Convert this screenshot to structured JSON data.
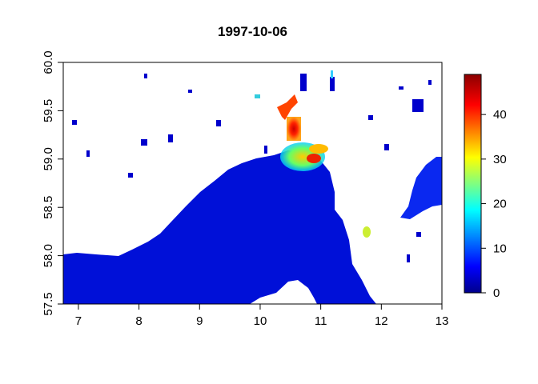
{
  "chart_data": {
    "type": "heatmap",
    "title": "1997-10-06",
    "xlabel": "",
    "ylabel": "",
    "xlim": [
      6.75,
      13.0
    ],
    "ylim": [
      57.5,
      60.0
    ],
    "x_ticks": [
      "7",
      "8",
      "9",
      "10",
      "11",
      "12",
      "13"
    ],
    "y_ticks": [
      "57.5",
      "58.0",
      "58.5",
      "59.0",
      "59.5",
      "60.0"
    ],
    "colorbar": {
      "range": [
        0,
        49
      ],
      "ticks": [
        "0",
        "10",
        "20",
        "30",
        "40"
      ],
      "colors": [
        "#00008B",
        "#0000FF",
        "#00FFFF",
        "#FFFF00",
        "#FF0000",
        "#8B0000"
      ]
    },
    "hotspots": [
      {
        "lon": 10.6,
        "lat": 59.3,
        "value": 47
      },
      {
        "lon": 10.55,
        "lat": 59.5,
        "value": 32
      },
      {
        "lon": 10.75,
        "lat": 59.1,
        "value": 36
      },
      {
        "lon": 10.9,
        "lat": 59.0,
        "value": 42
      },
      {
        "lon": 10.85,
        "lat": 58.95,
        "value": 18
      },
      {
        "lon": 11.8,
        "lat": 58.2,
        "value": 25
      }
    ]
  }
}
